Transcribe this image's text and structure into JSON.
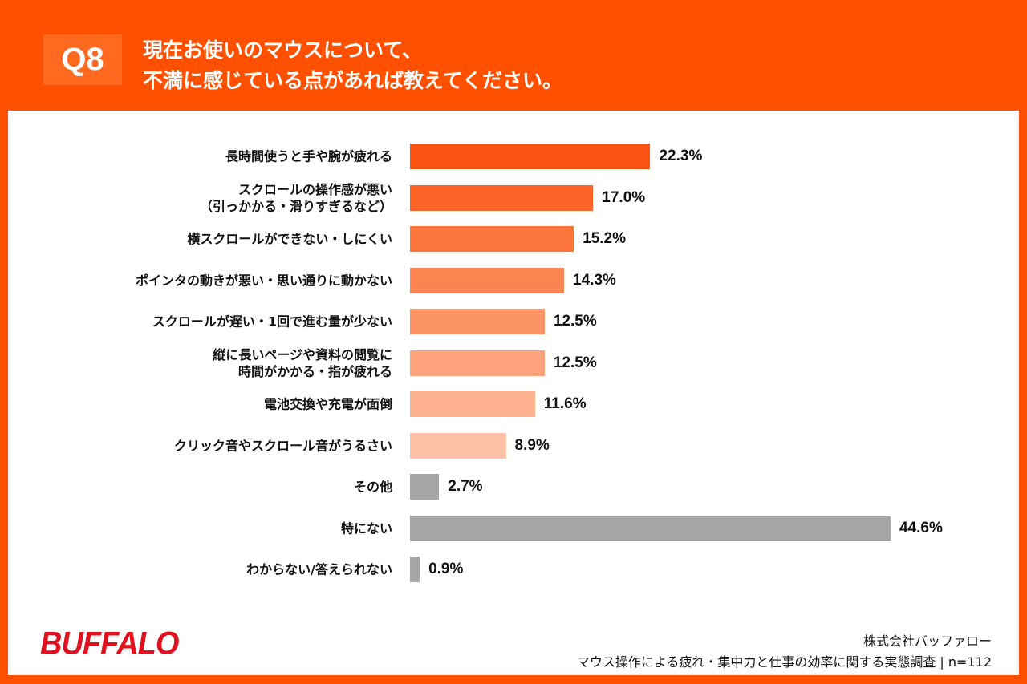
{
  "header": {
    "q": "Q8",
    "title_line1": "現在お使いのマウスについて、",
    "title_line2": "不満に感じている点があれば教えてください。"
  },
  "chart_data": {
    "type": "bar",
    "orientation": "horizontal",
    "title": "現在お使いのマウスについて、不満に感じている点があれば教えてください。",
    "categories": [
      "長時間使うと手や腕が疲れる",
      "スクロールの操作感が悪い\n（引っかかる・滑りすぎるなど）",
      "横スクロールができない・しにくい",
      "ポインタの動きが悪い・思い通りに動かない",
      "スクロールが遅い・1回で進む量が少ない",
      "縦に長いページや資料の閲覧に\n時間がかかる・指が疲れる",
      "電池交換や充電が面倒",
      "クリック音やスクロール音がうるさい",
      "その他",
      "特にない",
      "わからない/答えられない"
    ],
    "values": [
      22.3,
      17.0,
      15.2,
      14.3,
      12.5,
      12.5,
      11.6,
      8.9,
      2.7,
      44.6,
      0.9
    ],
    "labels": [
      "22.3%",
      "17.0%",
      "15.2%",
      "14.3%",
      "12.5%",
      "12.5%",
      "11.6%",
      "8.9%",
      "2.7%",
      "44.6%",
      "0.9%"
    ],
    "colors": [
      "#fb5412",
      "#fb6426",
      "#fb743b",
      "#fc8450",
      "#fc9465",
      "#fda27a",
      "#fdb18f",
      "#fdc1a6",
      "#a6a6a6",
      "#a6a6a6",
      "#a6a6a6"
    ],
    "unit": "%",
    "xlim": [
      0,
      50
    ],
    "grid": false
  },
  "footer": {
    "logo": "BUFFALO",
    "company": "株式会社バッファロー",
    "survey": "マウス操作による疲れ・集中力と仕事の効率に関する実態調査 | n=112"
  }
}
